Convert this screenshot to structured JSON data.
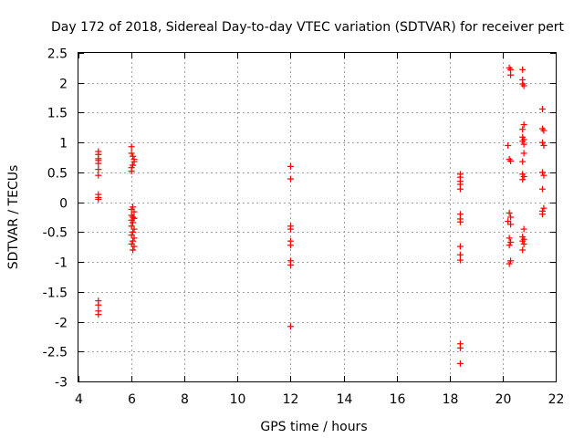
{
  "chart_data": {
    "type": "scatter",
    "title": "Day 172 of 2018, Sidereal Day-to-day VTEC variation (SDTVAR) for receiver pert",
    "xlabel": "GPS time / hours",
    "ylabel": "SDTVAR / TECUs",
    "xlim": [
      4,
      22
    ],
    "ylim": [
      -3,
      2.5
    ],
    "x_ticks": [
      4,
      6,
      8,
      10,
      12,
      14,
      16,
      18,
      20,
      22
    ],
    "x_tick_labels": [
      "4",
      "6",
      "8",
      "10",
      "12",
      "14",
      "16",
      "18",
      "20",
      "22"
    ],
    "y_ticks": [
      -3,
      -2.5,
      -2,
      -1.5,
      -1,
      -0.5,
      0,
      0.5,
      1,
      1.5,
      2,
      2.5
    ],
    "y_tick_labels": [
      "-3",
      "-2.5",
      "-2",
      "-1.5",
      "-1",
      "-0.5",
      "0",
      "0.5",
      "1",
      "1.5",
      "2",
      "2.5"
    ],
    "grid": true,
    "marker": "+",
    "color": "#ff0000",
    "series": [
      {
        "name": "SDTVAR",
        "points": [
          [
            4.75,
            0.85
          ],
          [
            4.75,
            0.8
          ],
          [
            4.75,
            0.73
          ],
          [
            4.75,
            0.7
          ],
          [
            4.75,
            0.65
          ],
          [
            4.75,
            0.55
          ],
          [
            4.75,
            0.45
          ],
          [
            4.75,
            0.13
          ],
          [
            4.75,
            0.08
          ],
          [
            4.75,
            0.05
          ],
          [
            4.75,
            -1.65
          ],
          [
            4.75,
            -1.72
          ],
          [
            4.75,
            -1.82
          ],
          [
            4.75,
            -1.88
          ],
          [
            6.0,
            0.93
          ],
          [
            6.0,
            0.82
          ],
          [
            6.05,
            0.77
          ],
          [
            6.1,
            0.72
          ],
          [
            6.1,
            0.68
          ],
          [
            6.05,
            0.62
          ],
          [
            6.0,
            0.58
          ],
          [
            6.0,
            0.52
          ],
          [
            6.05,
            -0.08
          ],
          [
            6.0,
            -0.12
          ],
          [
            6.1,
            -0.16
          ],
          [
            6.0,
            -0.22
          ],
          [
            6.05,
            -0.25
          ],
          [
            6.1,
            -0.27
          ],
          [
            6.0,
            -0.3
          ],
          [
            6.05,
            -0.34
          ],
          [
            6.0,
            -0.4
          ],
          [
            6.1,
            -0.45
          ],
          [
            6.05,
            -0.5
          ],
          [
            6.0,
            -0.55
          ],
          [
            6.1,
            -0.6
          ],
          [
            6.05,
            -0.65
          ],
          [
            6.0,
            -0.7
          ],
          [
            6.1,
            -0.74
          ],
          [
            6.05,
            -0.8
          ],
          [
            12.0,
            0.6
          ],
          [
            12.0,
            0.39
          ],
          [
            12.0,
            -0.4
          ],
          [
            12.0,
            -0.45
          ],
          [
            12.0,
            -0.65
          ],
          [
            12.0,
            -0.72
          ],
          [
            12.0,
            -0.98
          ],
          [
            12.0,
            -1.05
          ],
          [
            12.0,
            -2.08
          ],
          [
            18.4,
            0.47
          ],
          [
            18.4,
            0.42
          ],
          [
            18.4,
            0.35
          ],
          [
            18.4,
            0.3
          ],
          [
            18.4,
            0.22
          ],
          [
            18.4,
            -0.2
          ],
          [
            18.4,
            -0.28
          ],
          [
            18.4,
            -0.33
          ],
          [
            18.4,
            -0.74
          ],
          [
            18.4,
            -0.88
          ],
          [
            18.4,
            -0.97
          ],
          [
            18.4,
            -2.37
          ],
          [
            18.4,
            -2.44
          ],
          [
            18.4,
            -2.7
          ],
          [
            20.25,
            2.25
          ],
          [
            20.3,
            2.22
          ],
          [
            20.3,
            2.13
          ],
          [
            20.2,
            0.95
          ],
          [
            20.25,
            0.72
          ],
          [
            20.3,
            0.69
          ],
          [
            20.25,
            -0.18
          ],
          [
            20.3,
            -0.25
          ],
          [
            20.2,
            -0.32
          ],
          [
            20.3,
            -0.37
          ],
          [
            20.25,
            -0.6
          ],
          [
            20.3,
            -0.67
          ],
          [
            20.25,
            -0.72
          ],
          [
            20.3,
            -0.98
          ],
          [
            20.25,
            -1.03
          ],
          [
            20.75,
            2.22
          ],
          [
            20.75,
            2.05
          ],
          [
            20.75,
            1.98
          ],
          [
            20.8,
            1.95
          ],
          [
            20.8,
            1.3
          ],
          [
            20.75,
            1.22
          ],
          [
            20.75,
            1.09
          ],
          [
            20.8,
            1.05
          ],
          [
            20.75,
            1.02
          ],
          [
            20.8,
            0.97
          ],
          [
            20.8,
            0.82
          ],
          [
            20.75,
            0.68
          ],
          [
            20.75,
            0.47
          ],
          [
            20.8,
            0.43
          ],
          [
            20.75,
            0.38
          ],
          [
            20.8,
            -0.45
          ],
          [
            20.75,
            -0.58
          ],
          [
            20.8,
            -0.62
          ],
          [
            20.75,
            -0.65
          ],
          [
            20.8,
            -0.7
          ],
          [
            20.75,
            -0.8
          ],
          [
            21.5,
            1.56
          ],
          [
            21.5,
            1.23
          ],
          [
            21.55,
            1.2
          ],
          [
            21.5,
            1.0
          ],
          [
            21.55,
            0.95
          ],
          [
            21.5,
            0.5
          ],
          [
            21.55,
            0.45
          ],
          [
            21.5,
            0.22
          ],
          [
            21.55,
            -0.1
          ],
          [
            21.5,
            -0.15
          ],
          [
            21.5,
            -0.2
          ]
        ]
      }
    ]
  }
}
